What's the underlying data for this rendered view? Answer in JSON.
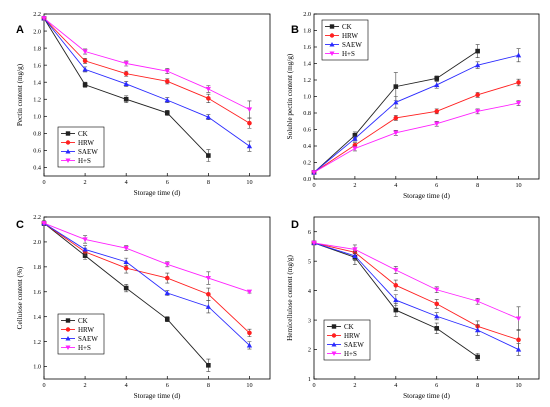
{
  "figure": {
    "background": "#ffffff"
  },
  "series_styles": [
    {
      "name": "CK",
      "color": "#222222",
      "marker": "square"
    },
    {
      "name": "HRW",
      "color": "#ff2020",
      "marker": "circle"
    },
    {
      "name": "SAEW",
      "color": "#2a2aff",
      "marker": "triangle-up"
    },
    {
      "name": "H+S",
      "color": "#ff22ff",
      "marker": "triangle-down"
    }
  ],
  "chart_data": [
    {
      "panel": "A",
      "type": "line",
      "xlabel": "Storage time (d)",
      "ylabel": "Pectin content (mg/g)",
      "xlim": [
        0,
        11
      ],
      "ylim": [
        0.3,
        2.2
      ],
      "xticks": [
        0,
        2,
        4,
        6,
        8,
        10
      ],
      "yticks": [
        0.4,
        0.6,
        0.8,
        1.0,
        1.2,
        1.4,
        1.6,
        1.8,
        2.0,
        2.2
      ],
      "ytick_labels": [
        "0.4",
        "0.6",
        "0.8",
        "1.0",
        "1.2",
        "1.4",
        "1.6",
        "1.8",
        "2.0",
        "2.2"
      ],
      "legend_position": "bottom-left",
      "series": [
        {
          "name": "CK",
          "x": [
            0,
            2,
            4,
            6,
            8
          ],
          "y": [
            2.15,
            1.37,
            1.2,
            1.04,
            0.54
          ],
          "err": [
            0.02,
            0.03,
            0.04,
            0.03,
            0.07
          ]
        },
        {
          "name": "HRW",
          "x": [
            0,
            2,
            4,
            6,
            8,
            10
          ],
          "y": [
            2.15,
            1.65,
            1.5,
            1.41,
            1.21,
            0.92
          ],
          "err": [
            0.02,
            0.03,
            0.03,
            0.03,
            0.05,
            0.06
          ]
        },
        {
          "name": "SAEW",
          "x": [
            0,
            2,
            4,
            6,
            8,
            10
          ],
          "y": [
            2.15,
            1.55,
            1.38,
            1.19,
            0.99,
            0.65
          ],
          "err": [
            0.02,
            0.03,
            0.03,
            0.03,
            0.03,
            0.06
          ]
        },
        {
          "name": "H+S",
          "x": [
            0,
            2,
            4,
            6,
            8,
            10
          ],
          "y": [
            2.15,
            1.76,
            1.62,
            1.53,
            1.32,
            1.08
          ],
          "err": [
            0.02,
            0.03,
            0.03,
            0.03,
            0.04,
            0.1
          ]
        }
      ]
    },
    {
      "panel": "B",
      "type": "line",
      "xlabel": "Storage time (d)",
      "ylabel": "Soluble pectin content (mg/g)",
      "xlim": [
        0,
        11
      ],
      "ylim": [
        0,
        2.0
      ],
      "xticks": [
        0,
        2,
        4,
        6,
        8,
        10
      ],
      "yticks": [
        0.0,
        0.2,
        0.4,
        0.6,
        0.8,
        1.0,
        1.2,
        1.4,
        1.6,
        1.8,
        2.0
      ],
      "ytick_labels": [
        "0.0",
        "0.2",
        "0.4",
        "0.6",
        "0.8",
        "1.0",
        "1.2",
        "1.4",
        "1.6",
        "1.8",
        "2.0"
      ],
      "legend_position": "top-left",
      "series": [
        {
          "name": "CK",
          "x": [
            0,
            2,
            4,
            6,
            8
          ],
          "y": [
            0.08,
            0.53,
            1.12,
            1.22,
            1.55
          ],
          "err": [
            0.01,
            0.04,
            0.17,
            0.03,
            0.08
          ]
        },
        {
          "name": "HRW",
          "x": [
            0,
            2,
            4,
            6,
            8,
            10
          ],
          "y": [
            0.08,
            0.41,
            0.74,
            0.82,
            1.02,
            1.17
          ],
          "err": [
            0.01,
            0.03,
            0.03,
            0.03,
            0.03,
            0.04
          ]
        },
        {
          "name": "SAEW",
          "x": [
            0,
            2,
            4,
            6,
            8,
            10
          ],
          "y": [
            0.08,
            0.49,
            0.93,
            1.14,
            1.38,
            1.5
          ],
          "err": [
            0.01,
            0.03,
            0.07,
            0.04,
            0.04,
            0.08
          ]
        },
        {
          "name": "H+S",
          "x": [
            0,
            2,
            4,
            6,
            8,
            10
          ],
          "y": [
            0.08,
            0.37,
            0.56,
            0.67,
            0.82,
            0.92
          ],
          "err": [
            0.01,
            0.03,
            0.03,
            0.03,
            0.03,
            0.03
          ]
        }
      ]
    },
    {
      "panel": "C",
      "type": "line",
      "xlabel": "Storage time (d)",
      "ylabel": "Cellulose content (%)",
      "xlim": [
        0,
        11
      ],
      "ylim": [
        0.9,
        2.2
      ],
      "xticks": [
        0,
        2,
        4,
        6,
        8,
        10
      ],
      "yticks": [
        1.0,
        1.2,
        1.4,
        1.6,
        1.8,
        2.0,
        2.2
      ],
      "ytick_labels": [
        "1.0",
        "1.2",
        "1.4",
        "1.6",
        "1.8",
        "2.0",
        "2.2"
      ],
      "legend_position": "bottom-left",
      "series": [
        {
          "name": "CK",
          "x": [
            0,
            2,
            4,
            6,
            8
          ],
          "y": [
            2.15,
            1.89,
            1.63,
            1.38,
            1.01
          ],
          "err": [
            0.02,
            0.03,
            0.03,
            0.02,
            0.05
          ]
        },
        {
          "name": "HRW",
          "x": [
            0,
            2,
            4,
            6,
            8,
            10
          ],
          "y": [
            2.15,
            1.92,
            1.79,
            1.71,
            1.58,
            1.27
          ],
          "err": [
            0.02,
            0.03,
            0.04,
            0.04,
            0.05,
            0.03
          ]
        },
        {
          "name": "SAEW",
          "x": [
            0,
            2,
            4,
            6,
            8,
            10
          ],
          "y": [
            2.15,
            1.94,
            1.84,
            1.59,
            1.48,
            1.17
          ],
          "err": [
            0.02,
            0.03,
            0.03,
            0.02,
            0.05,
            0.03
          ]
        },
        {
          "name": "H+S",
          "x": [
            0,
            2,
            4,
            6,
            8,
            10
          ],
          "y": [
            2.15,
            2.02,
            1.95,
            1.82,
            1.71,
            1.6
          ],
          "err": [
            0.02,
            0.03,
            0.02,
            0.02,
            0.05,
            0.01
          ]
        }
      ]
    },
    {
      "panel": "D",
      "type": "line",
      "xlabel": "Storage time (d)",
      "ylabel": "Hemicellulose content (mg/g)",
      "xlim": [
        0,
        11
      ],
      "ylim": [
        1.0,
        6.5
      ],
      "xticks": [
        0,
        2,
        4,
        6,
        8,
        10
      ],
      "yticks": [
        1,
        2,
        3,
        4,
        5,
        6
      ],
      "ytick_labels": [
        "1",
        "2",
        "3",
        "4",
        "5",
        "6"
      ],
      "legend_position": "bottom-left",
      "series": [
        {
          "name": "CK",
          "x": [
            0,
            2,
            4,
            6,
            8
          ],
          "y": [
            5.62,
            5.13,
            3.34,
            2.72,
            1.75
          ],
          "err": [
            0.04,
            0.25,
            0.22,
            0.18,
            0.12
          ]
        },
        {
          "name": "HRW",
          "x": [
            0,
            2,
            4,
            6,
            8,
            10
          ],
          "y": [
            5.62,
            5.3,
            4.18,
            3.55,
            2.79,
            2.33
          ],
          "err": [
            0.04,
            0.15,
            0.18,
            0.15,
            0.18,
            0.35
          ]
        },
        {
          "name": "SAEW",
          "x": [
            0,
            2,
            4,
            6,
            8,
            10
          ],
          "y": [
            5.62,
            5.18,
            3.68,
            3.13,
            2.66,
            2.0
          ],
          "err": [
            0.04,
            0.15,
            0.18,
            0.12,
            0.18,
            0.2
          ]
        },
        {
          "name": "H+S",
          "x": [
            0,
            2,
            4,
            6,
            8,
            10
          ],
          "y": [
            5.62,
            5.4,
            4.7,
            4.03,
            3.64,
            3.05
          ],
          "err": [
            0.04,
            0.15,
            0.12,
            0.1,
            0.1,
            0.4
          ]
        }
      ]
    }
  ]
}
